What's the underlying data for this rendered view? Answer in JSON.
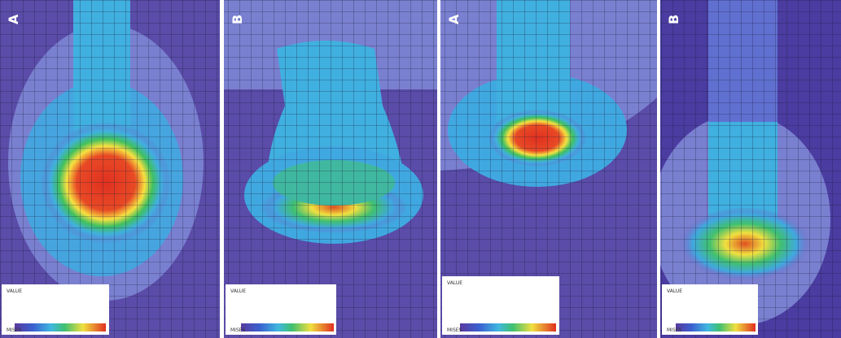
{
  "panels": [
    {
      "label": "A",
      "legend_title": "VALUE",
      "legend_name": "MISES"
    },
    {
      "label": "B",
      "legend_title": "VALUE",
      "legend_name": "MISES"
    },
    {
      "label": "A",
      "legend_title": "VALUE",
      "legend_name": "MISES"
    },
    {
      "label": "B",
      "legend_title": "VALUE",
      "legend_name": "MISES"
    }
  ]
}
